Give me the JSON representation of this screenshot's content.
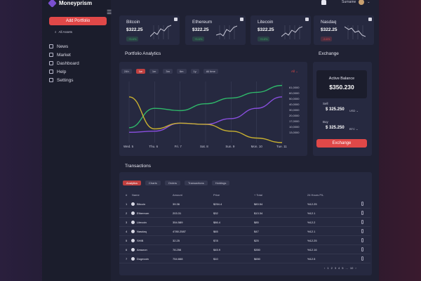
{
  "app": {
    "name": "Moneyprism"
  },
  "user": {
    "name": "Surname"
  },
  "sidebar": {
    "add_button": "Add Portfolio",
    "all_assets": "All Assets",
    "items": [
      {
        "label": "News"
      },
      {
        "label": "Market"
      },
      {
        "label": "Dashboard"
      },
      {
        "label": "Help"
      },
      {
        "label": "Settings"
      }
    ]
  },
  "cards": [
    {
      "name": "Bitcoin",
      "price": "$322.25",
      "badge": "+5.6%",
      "badge_color": "#3aa860",
      "trend": "up"
    },
    {
      "name": "Ethereum",
      "price": "$322.25",
      "badge": "+5.6%",
      "badge_color": "#3aa860",
      "trend": "up"
    },
    {
      "name": "Litecoin",
      "price": "$322.25",
      "badge": "+5.6%",
      "badge_color": "#3aa860",
      "trend": "up"
    },
    {
      "name": "Nasdaq",
      "price": "$322.25",
      "badge": "-5.6%",
      "badge_color": "#e04848",
      "trend": "down"
    }
  ],
  "analytics": {
    "title": "Portfolio Analytics",
    "timeframes": [
      "24h",
      "1w",
      "1m",
      "3m",
      "6m",
      "1y",
      "All time"
    ],
    "active_timeframe": "1w",
    "select": "All",
    "chart_data": {
      "type": "line",
      "x": [
        "Wed. 5",
        "Thu. 6",
        "Fri. 7",
        "Sat. 8",
        "Sun. 9",
        "Mon. 10",
        "Tue. 11"
      ],
      "ylim": [
        10000,
        61000
      ],
      "y_ticks": [
        "61,0000",
        "60,0000",
        "50,0000",
        "40,0000",
        "30,0000",
        "20,0000",
        "17,0000",
        "10,0000",
        "13,0000"
      ],
      "series": [
        {
          "color": "#2fb86a",
          "values": [
            23000,
            40000,
            38000,
            44000,
            49000,
            54000,
            60000
          ]
        },
        {
          "color": "#8a4fe0",
          "values": [
            19000,
            20000,
            27000,
            26000,
            31000,
            40000,
            50000
          ]
        },
        {
          "color": "#c8b030",
          "values": [
            50000,
            22000,
            27000,
            26000,
            20000,
            14000,
            10000
          ]
        }
      ]
    }
  },
  "exchange": {
    "title": "Exchange",
    "active_balance_label": "Active Balance",
    "active_balance": "$350.230",
    "sell_label": "Sell",
    "sell_value": "$ 325.250",
    "sell_unit": "USD",
    "buy_label": "Buy",
    "buy_value": "$ 325.250",
    "buy_unit": "BTC",
    "button": "Exchange"
  },
  "transactions": {
    "title": "Transactions",
    "tabs": [
      "Analytics",
      "Charts",
      "Orders",
      "Transactions",
      "Holdings"
    ],
    "active_tab": "Analytics",
    "headers": [
      "#",
      "Name",
      "Amount",
      "Price",
      "+ Total",
      "24 Hours P/L"
    ],
    "rows": [
      {
        "num": "1",
        "name": "Bitcoin",
        "amount": "39.36",
        "price": "$254.4",
        "total": "$83.54",
        "pl": "%12.25"
      },
      {
        "num": "2",
        "name": "Ethereum",
        "amount": "203.31",
        "price": "$32",
        "total": "$13.34",
        "pl": "%12.1"
      },
      {
        "num": "3",
        "name": "Litecoin",
        "amount": "354.589",
        "price": "$86.4",
        "total": "$85",
        "pl": "%12.2"
      },
      {
        "num": "4",
        "name": "Nasdaq",
        "amount": "4780.2587",
        "price": "$65",
        "total": "$47",
        "pl": "%12.1"
      },
      {
        "num": "5",
        "name": "SHIB",
        "amount": "32.25",
        "price": "$78",
        "total": "$25",
        "pl": "%12.25"
      },
      {
        "num": "6",
        "name": "Amazon",
        "amount": "78.256",
        "price": "$45.9",
        "total": "$350",
        "pl": "%12.16"
      },
      {
        "num": "7",
        "name": "Dogecoin",
        "amount": "754.668",
        "price": "$10",
        "total": "$650",
        "pl": "%12.5"
      }
    ],
    "pager": [
      "1",
      "2",
      "3",
      "4",
      "5",
      "...",
      "10"
    ]
  }
}
